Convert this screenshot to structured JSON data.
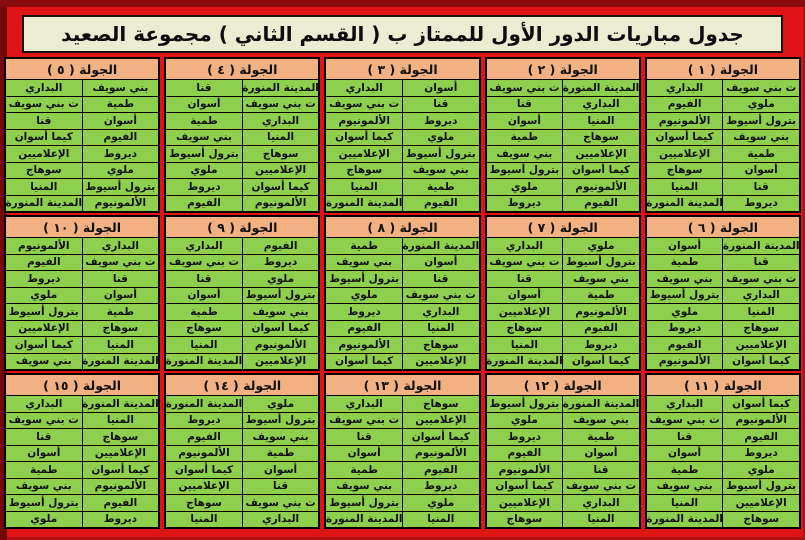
{
  "title": "جدول مباريات الدور الأول للممتاز ب ( القسم الثاني ) مجموعة الصعيد",
  "colors": {
    "frame_red": "#DF1515",
    "frame_dark_edge": "#8A0B0B",
    "title_background": "#ECECD2",
    "round_header_background": "#F2B183",
    "cell_green": "#8ED04E",
    "border_black": "#000000"
  },
  "rounds": [
    {
      "label": "الجولة ( ١ )",
      "matches": [
        [
          "ت بني سويف",
          "البداري"
        ],
        [
          "ملوي",
          "الفيوم"
        ],
        [
          "بترول أسيوط",
          "الألمونيوم"
        ],
        [
          "بني سويف",
          "كيما أسوان"
        ],
        [
          "طمية",
          "الإعلاميين"
        ],
        [
          "أسوان",
          "سوهاج"
        ],
        [
          "قنا",
          "المنيا"
        ],
        [
          "ديروط",
          "المدينة المنورة"
        ]
      ]
    },
    {
      "label": "الجولة ( ٢ )",
      "matches": [
        [
          "المدينة المنورة",
          "ت بني سويف"
        ],
        [
          "البداري",
          "قنا"
        ],
        [
          "المنيا",
          "أسوان"
        ],
        [
          "سوهاج",
          "طمية"
        ],
        [
          "الإعلاميين",
          "بني سويف"
        ],
        [
          "كيما أسوان",
          "بترول أسيوط"
        ],
        [
          "الألمونيوم",
          "ملوي"
        ],
        [
          "الفيوم",
          "ديروط"
        ]
      ]
    },
    {
      "label": "الجولة ( ٣ )",
      "matches": [
        [
          "أسوان",
          "البداري"
        ],
        [
          "قنا",
          "ت بني سويف"
        ],
        [
          "ديروط",
          "الألمونيوم"
        ],
        [
          "ملوي",
          "كيما أسوان"
        ],
        [
          "بترول أسيوط",
          "الإعلاميين"
        ],
        [
          "بني سويف",
          "سوهاج"
        ],
        [
          "طمية",
          "المنيا"
        ],
        [
          "الفيوم",
          "المدينة المنورة"
        ]
      ]
    },
    {
      "label": "الجولة ( ٤ )",
      "matches": [
        [
          "المدينة المنورة",
          "قنا"
        ],
        [
          "ت بني سويف",
          "أسوان"
        ],
        [
          "البداري",
          "طمية"
        ],
        [
          "المنيا",
          "بني سويف"
        ],
        [
          "سوهاج",
          "بترول أسيوط"
        ],
        [
          "الإعلاميين",
          "ملوي"
        ],
        [
          "كيما أسوان",
          "ديروط"
        ],
        [
          "الألمونيوم",
          "الفيوم"
        ]
      ]
    },
    {
      "label": "الجولة ( ٥ )",
      "matches": [
        [
          "بني سويف",
          "البداري"
        ],
        [
          "طمية",
          "ت بني سويف"
        ],
        [
          "أسوان",
          "قنا"
        ],
        [
          "الفيوم",
          "كيما أسوان"
        ],
        [
          "ديروط",
          "الإعلاميين"
        ],
        [
          "ملوي",
          "سوهاج"
        ],
        [
          "بترول أسيوط",
          "المنيا"
        ],
        [
          "الألمونيوم",
          "المدينة المنورة"
        ]
      ]
    },
    {
      "label": "الجولة ( ٦ )",
      "matches": [
        [
          "المدينة المنورة",
          "أسوان"
        ],
        [
          "قنا",
          "طمية"
        ],
        [
          "ت بني سويف",
          "بني سويف"
        ],
        [
          "البداري",
          "بترول أسيوط"
        ],
        [
          "المنيا",
          "ملوي"
        ],
        [
          "سوهاج",
          "ديروط"
        ],
        [
          "الإعلاميين",
          "الفيوم"
        ],
        [
          "كيما أسوان",
          "الألمونيوم"
        ]
      ]
    },
    {
      "label": "الجولة ( ٧ )",
      "matches": [
        [
          "ملوي",
          "البداري"
        ],
        [
          "بترول أسيوط",
          "ت بني سويف"
        ],
        [
          "بني سويف",
          "قنا"
        ],
        [
          "طمية",
          "أسوان"
        ],
        [
          "الألمونيوم",
          "الإعلاميين"
        ],
        [
          "الفيوم",
          "سوهاج"
        ],
        [
          "ديروط",
          "المنيا"
        ],
        [
          "كيما أسوان",
          "المدينة المنورة"
        ]
      ]
    },
    {
      "label": "الجولة ( ٨ )",
      "matches": [
        [
          "المدينة المنورة",
          "طمية"
        ],
        [
          "أسوان",
          "بني سويف"
        ],
        [
          "قنا",
          "بترول أسيوط"
        ],
        [
          "ت بني سويف",
          "ملوي"
        ],
        [
          "البداري",
          "ديروط"
        ],
        [
          "المنيا",
          "الفيوم"
        ],
        [
          "سوهاج",
          "الألمونيوم"
        ],
        [
          "الإعلاميين",
          "كيما أسوان"
        ]
      ]
    },
    {
      "label": "الجولة ( ٩ )",
      "matches": [
        [
          "الفيوم",
          "البداري"
        ],
        [
          "ديروط",
          "ت بني سويف"
        ],
        [
          "ملوي",
          "قنا"
        ],
        [
          "بترول أسيوط",
          "أسوان"
        ],
        [
          "بني سويف",
          "طمية"
        ],
        [
          "كيما أسوان",
          "سوهاج"
        ],
        [
          "الألمونيوم",
          "المنيا"
        ],
        [
          "الإعلاميين",
          "المدينة المنورة"
        ]
      ]
    },
    {
      "label": "الجولة ( ١٠ )",
      "matches": [
        [
          "البداري",
          "الألمونيوم"
        ],
        [
          "ت بني سويف",
          "الفيوم"
        ],
        [
          "قنا",
          "ديروط"
        ],
        [
          "أسوان",
          "ملوي"
        ],
        [
          "طمية",
          "بترول أسيوط"
        ],
        [
          "سوهاج",
          "الإعلاميين"
        ],
        [
          "المنيا",
          "كيما أسوان"
        ],
        [
          "المدينة المنورة",
          "بني سويف"
        ]
      ]
    },
    {
      "label": "الجولة ( ١١ )",
      "matches": [
        [
          "كيما أسوان",
          "البداري"
        ],
        [
          "الألمونيوم",
          "ت بني سويف"
        ],
        [
          "الفيوم",
          "قنا"
        ],
        [
          "ديروط",
          "أسوان"
        ],
        [
          "ملوي",
          "طمية"
        ],
        [
          "بترول أسيوط",
          "بني سويف"
        ],
        [
          "الإعلاميين",
          "المنيا"
        ],
        [
          "سوهاج",
          "المدينة المنورة"
        ]
      ]
    },
    {
      "label": "الجولة ( ١٢ )",
      "matches": [
        [
          "المدينة المنورة",
          "بترول أسيوط"
        ],
        [
          "بني سويف",
          "ملوي"
        ],
        [
          "طمية",
          "ديروط"
        ],
        [
          "أسوان",
          "الفيوم"
        ],
        [
          "قنا",
          "الألمونيوم"
        ],
        [
          "ت بني سويف",
          "كيما أسوان"
        ],
        [
          "البداري",
          "الإعلاميين"
        ],
        [
          "المنيا",
          "سوهاج"
        ]
      ]
    },
    {
      "label": "الجولة ( ١٣ )",
      "matches": [
        [
          "سوهاج",
          "البداري"
        ],
        [
          "الإعلاميين",
          "ت بني سويف"
        ],
        [
          "كيما أسوان",
          "قنا"
        ],
        [
          "الألمونيوم",
          "أسوان"
        ],
        [
          "الفيوم",
          "طمية"
        ],
        [
          "ديروط",
          "بني سويف"
        ],
        [
          "ملوي",
          "بترول أسيوط"
        ],
        [
          "المنيا",
          "المدينة المنورة"
        ]
      ]
    },
    {
      "label": "الجولة ( ١٤ )",
      "matches": [
        [
          "ملوي",
          "المدينة المنورة"
        ],
        [
          "بترول أسيوط",
          "ديروط"
        ],
        [
          "بني سويف",
          "الفيوم"
        ],
        [
          "طمية",
          "الألمونيوم"
        ],
        [
          "أسوان",
          "كيما أسوان"
        ],
        [
          "قنا",
          "الإعلاميين"
        ],
        [
          "ت بني سويف",
          "سوهاج"
        ],
        [
          "البداري",
          "المنيا"
        ]
      ]
    },
    {
      "label": "الجولة ( ١٥ )",
      "matches": [
        [
          "المدينة المنورة",
          "البداري"
        ],
        [
          "المنيا",
          "ت بني سويف"
        ],
        [
          "سوهاج",
          "قنا"
        ],
        [
          "الإعلاميين",
          "أسوان"
        ],
        [
          "كيما أسوان",
          "طمية"
        ],
        [
          "الألمونيوم",
          "بني سويف"
        ],
        [
          "الفيوم",
          "بترول أسيوط"
        ],
        [
          "ديروط",
          "ملوي"
        ]
      ]
    }
  ]
}
